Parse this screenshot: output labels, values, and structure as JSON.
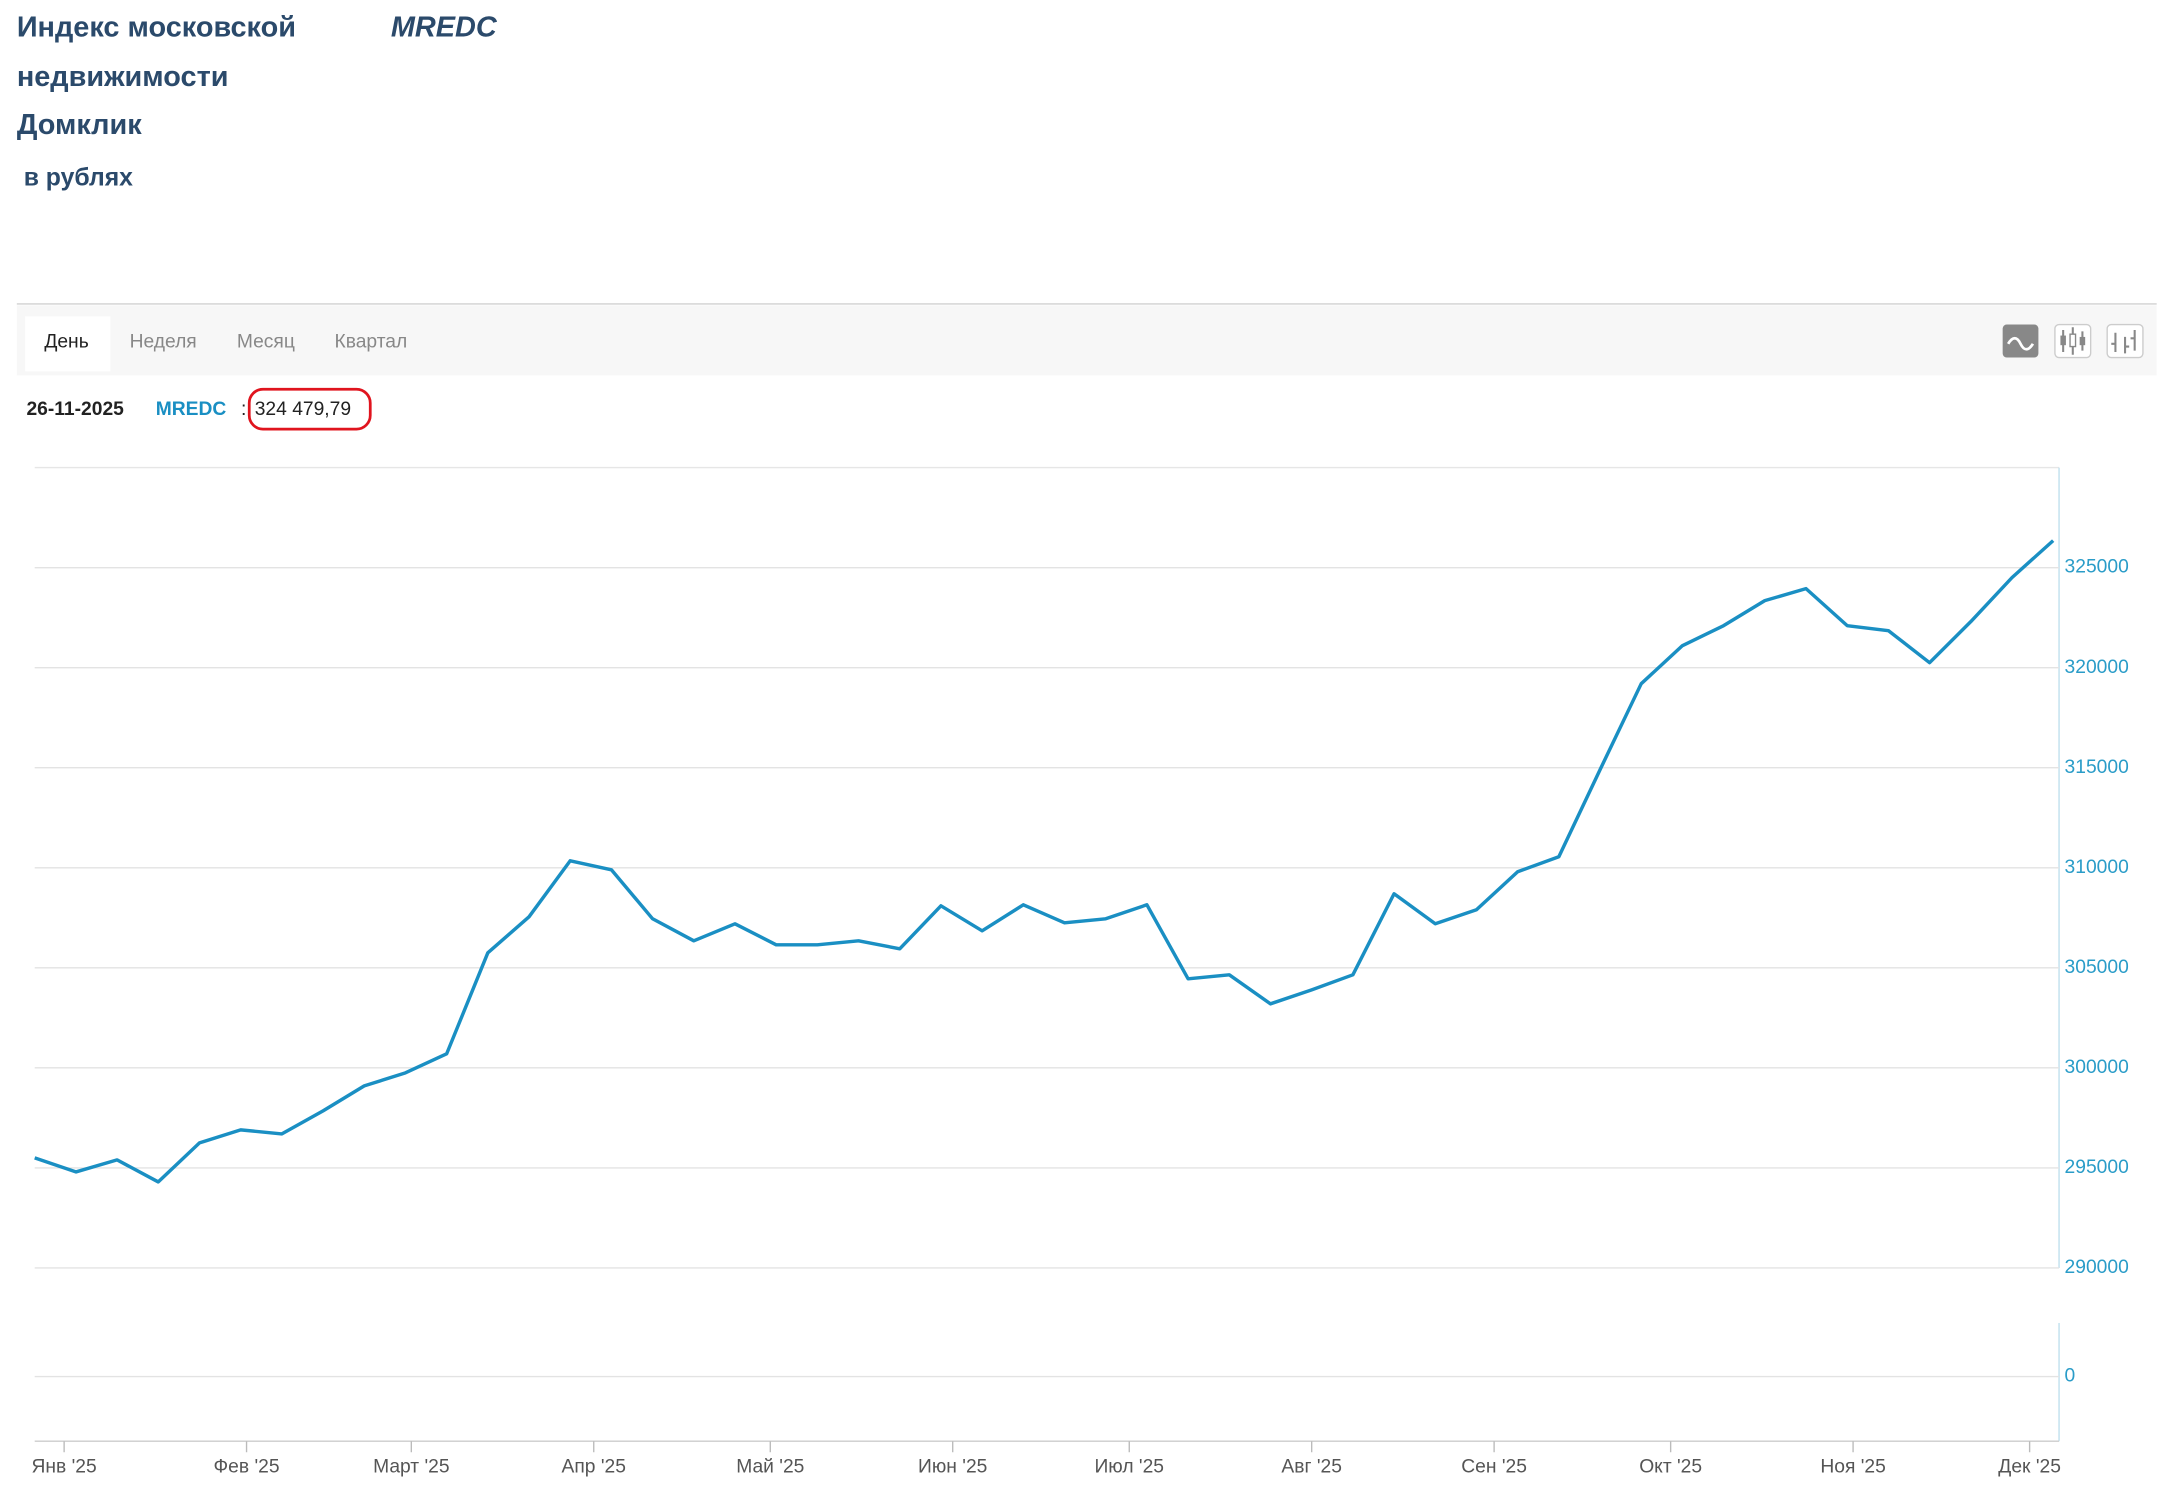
{
  "header": {
    "title_lines": [
      "Индекс московской",
      "недвижимости",
      "Домклик"
    ],
    "ticker": "MREDC",
    "subtitle": "в рублях"
  },
  "tabs": [
    "День",
    "Неделя",
    "Месяц",
    "Квартал"
  ],
  "info": {
    "date": "26-11-2025",
    "ticker": "MREDC",
    "separator": ":",
    "value": "324 479,79"
  },
  "chart_data": {
    "type": "line",
    "color": "#1a8fc3",
    "x": [
      -5,
      2,
      9,
      16,
      23,
      30,
      37,
      44,
      51,
      58,
      65,
      72,
      79,
      86,
      93,
      100,
      107,
      114,
      121,
      128,
      135,
      142,
      149,
      156,
      163,
      170,
      177,
      184,
      191,
      198,
      205,
      212,
      219,
      226,
      233,
      240,
      247,
      254,
      261,
      268,
      275,
      282,
      289,
      296,
      303,
      310,
      317,
      324,
      331,
      338
    ],
    "values": [
      295500,
      294800,
      295400,
      294300,
      296250,
      296900,
      296700,
      297850,
      299100,
      299750,
      300700,
      305750,
      307550,
      310350,
      309900,
      307450,
      306350,
      307200,
      306150,
      306150,
      306350,
      305950,
      308100,
      306850,
      308150,
      307250,
      307450,
      308150,
      304450,
      304650,
      303200,
      303900,
      304650,
      308700,
      307200,
      307900,
      309800,
      310550,
      314900,
      319200,
      321100,
      322100,
      323350,
      323950,
      322100,
      321850,
      320250,
      322300,
      324500,
      326350
    ],
    "xlim": [
      -5,
      339
    ],
    "xticks": [
      {
        "value": 0,
        "label": "Янв '25"
      },
      {
        "value": 31,
        "label": "Фев '25"
      },
      {
        "value": 59,
        "label": "Март '25"
      },
      {
        "value": 90,
        "label": "Апр '25"
      },
      {
        "value": 120,
        "label": "Май '25"
      },
      {
        "value": 151,
        "label": "Июн '25"
      },
      {
        "value": 181,
        "label": "Июл '25"
      },
      {
        "value": 212,
        "label": "Авг '25"
      },
      {
        "value": 243,
        "label": "Сен '25"
      },
      {
        "value": 273,
        "label": "Окт '25"
      },
      {
        "value": 304,
        "label": "Ноя '25"
      },
      {
        "value": 334,
        "label": "Дек '25"
      }
    ],
    "ylim": [
      290000,
      330000
    ],
    "yticks": [
      290000,
      295000,
      300000,
      305000,
      310000,
      315000,
      320000,
      325000
    ],
    "grid": true
  },
  "indicator_panel": {
    "yticks": [
      0
    ]
  }
}
